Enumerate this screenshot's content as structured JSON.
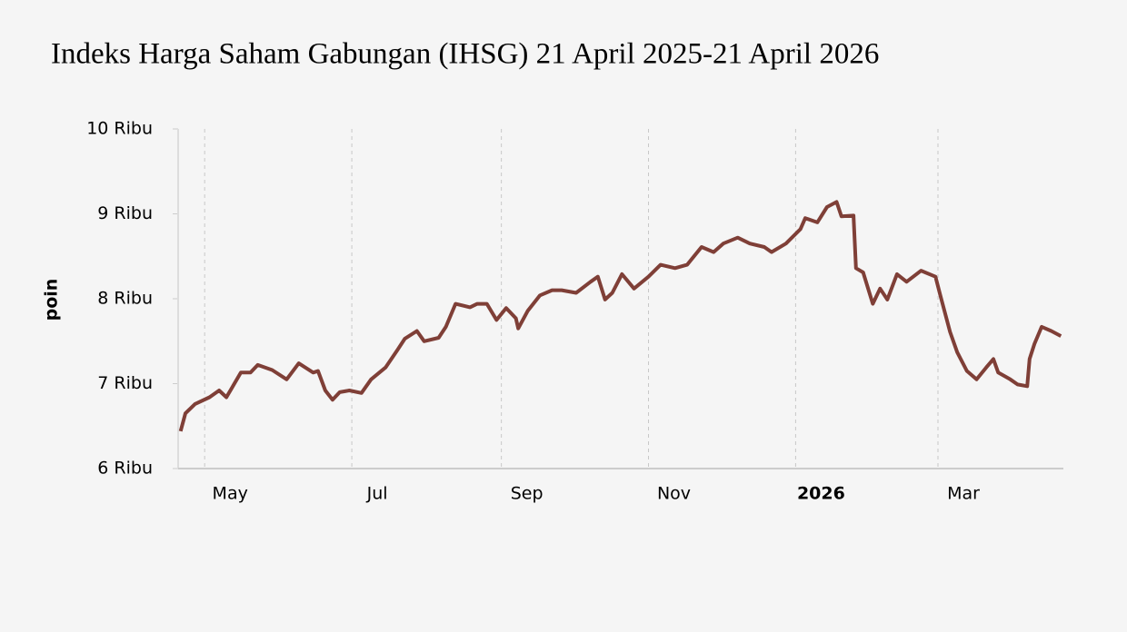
{
  "chart_data": {
    "type": "line",
    "title": "Indeks Harga Saham Gabungan (IHSG) 21 April 2025-21 April 2026",
    "y_label": "poin",
    "x": [
      "2025-04-21",
      "2025-04-23",
      "2025-04-27",
      "2025-05-03",
      "2025-05-07",
      "2025-05-10",
      "2025-05-16",
      "2025-05-20",
      "2025-05-23",
      "2025-05-29",
      "2025-06-04",
      "2025-06-09",
      "2025-06-15",
      "2025-06-17",
      "2025-06-20",
      "2025-06-23",
      "2025-06-26",
      "2025-06-30",
      "2025-07-05",
      "2025-07-09",
      "2025-07-15",
      "2025-07-20",
      "2025-07-23",
      "2025-07-28",
      "2025-07-31",
      "2025-08-06",
      "2025-08-09",
      "2025-08-13",
      "2025-08-19",
      "2025-08-22",
      "2025-08-26",
      "2025-08-30",
      "2025-09-03",
      "2025-09-07",
      "2025-09-08",
      "2025-09-12",
      "2025-09-17",
      "2025-09-22",
      "2025-09-26",
      "2025-10-02",
      "2025-10-08",
      "2025-10-11",
      "2025-10-14",
      "2025-10-17",
      "2025-10-21",
      "2025-10-26",
      "2025-11-01",
      "2025-11-06",
      "2025-11-12",
      "2025-11-17",
      "2025-11-23",
      "2025-11-28",
      "2025-12-02",
      "2025-12-08",
      "2025-12-13",
      "2025-12-19",
      "2025-12-22",
      "2025-12-28",
      "2026-01-03",
      "2026-01-05",
      "2026-01-10",
      "2026-01-14",
      "2026-01-18",
      "2026-01-20",
      "2026-01-25",
      "2026-01-26",
      "2026-01-29",
      "2026-02-02",
      "2026-02-05",
      "2026-02-08",
      "2026-02-12",
      "2026-02-16",
      "2026-02-22",
      "2026-02-28",
      "2026-03-02",
      "2026-03-06",
      "2026-03-09",
      "2026-03-13",
      "2026-03-17",
      "2026-03-21",
      "2026-03-24",
      "2026-03-26",
      "2026-03-31",
      "2026-04-03",
      "2026-04-07",
      "2026-04-08",
      "2026-04-10",
      "2026-04-13",
      "2026-04-17",
      "2026-04-21"
    ],
    "series": [
      {
        "name": "IHSG",
        "color": "#7f3f37",
        "values": [
          6440,
          6650,
          6760,
          6840,
          6920,
          6840,
          7130,
          7130,
          7220,
          7160,
          7050,
          7240,
          7130,
          7150,
          6920,
          6810,
          6900,
          6920,
          6890,
          7050,
          7190,
          7400,
          7530,
          7620,
          7500,
          7540,
          7670,
          7940,
          7900,
          7940,
          7940,
          7750,
          7890,
          7770,
          7650,
          7860,
          8040,
          8100,
          8100,
          8070,
          8200,
          8260,
          7990,
          8070,
          8290,
          8120,
          8260,
          8400,
          8360,
          8400,
          8610,
          8550,
          8650,
          8720,
          8650,
          8610,
          8550,
          8650,
          8820,
          8950,
          8900,
          9080,
          9140,
          8970,
          8980,
          8360,
          8310,
          7940,
          8120,
          7990,
          8290,
          8200,
          8330,
          8260,
          8040,
          7610,
          7370,
          7150,
          7050,
          7190,
          7290,
          7130,
          7050,
          6990,
          6970,
          7290,
          7470,
          7670,
          7620,
          7560
        ]
      }
    ],
    "xlim": [
      "2025-04-20",
      "2026-04-22"
    ],
    "xticks": [
      {
        "value": "2025-05-01",
        "label": "May"
      },
      {
        "value": "2025-07-01",
        "label": "Jul"
      },
      {
        "value": "2025-09-01",
        "label": "Sep"
      },
      {
        "value": "2025-11-01",
        "label": "Nov"
      },
      {
        "value": "2026-01-01",
        "label": "2026",
        "bold": true
      },
      {
        "value": "2026-03-01",
        "label": "Mar"
      }
    ],
    "ylim": [
      6000,
      10000
    ],
    "yticks": [
      {
        "value": 6000,
        "label": "6 Ribu"
      },
      {
        "value": 7000,
        "label": "7 Ribu"
      },
      {
        "value": 8000,
        "label": "8 Ribu"
      },
      {
        "value": 9000,
        "label": "9 Ribu"
      },
      {
        "value": 10000,
        "label": "10 Ribu"
      }
    ],
    "grid": true
  }
}
